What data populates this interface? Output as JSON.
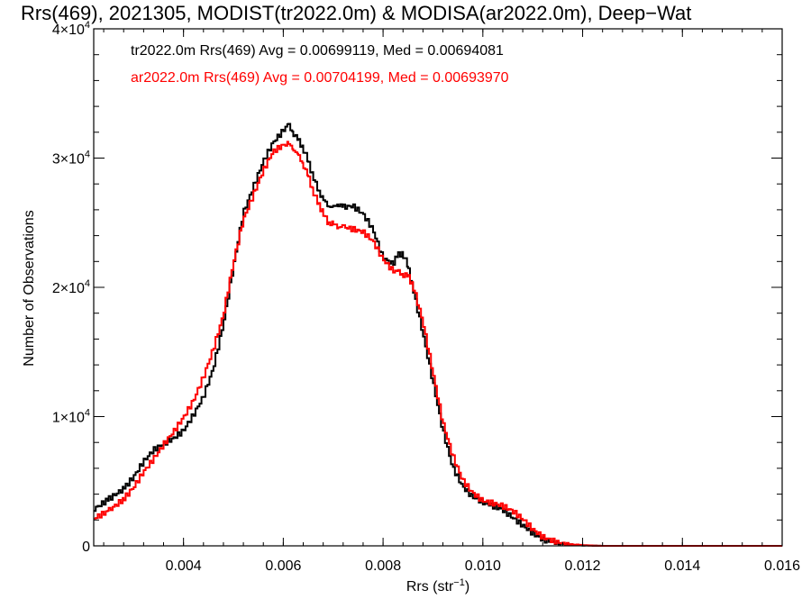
{
  "chart_data": {
    "type": "line",
    "title": "Rrs(469), 2021305, MODIST(tr2022.0m) & MODISA(ar2022.0m), Deep−Wat",
    "xlabel": "Rrs (str",
    "xlabel_sup": "−1",
    "xlabel_end": ")",
    "ylabel": "Number of Observations",
    "xlim": [
      0.0022,
      0.016
    ],
    "ylim": [
      0,
      40000
    ],
    "x_ticks": [
      {
        "value": 0.004,
        "label": "0.004"
      },
      {
        "value": 0.006,
        "label": "0.006"
      },
      {
        "value": 0.008,
        "label": "0.008"
      },
      {
        "value": 0.01,
        "label": "0.010"
      },
      {
        "value": 0.012,
        "label": "0.012"
      },
      {
        "value": 0.014,
        "label": "0.014"
      },
      {
        "value": 0.016,
        "label": "0.016"
      }
    ],
    "y_ticks": [
      {
        "value": 0,
        "mant": "0",
        "exp": ""
      },
      {
        "value": 10000,
        "mant": "1×10",
        "exp": "4"
      },
      {
        "value": 20000,
        "mant": "2×10",
        "exp": "4"
      },
      {
        "value": 30000,
        "mant": "3×10",
        "exp": "4"
      },
      {
        "value": 40000,
        "mant": "4×10",
        "exp": "4"
      }
    ],
    "grid": false,
    "series": [
      {
        "name": "tr2022.0m",
        "color": "#000000",
        "legend": "tr2022.0m Rrs(469) Avg = 0.00699119, Med = 0.00694081",
        "x": [
          0.0022,
          0.0025,
          0.0028,
          0.003,
          0.0032,
          0.0034,
          0.0036,
          0.0038,
          0.004,
          0.0042,
          0.0044,
          0.0046,
          0.0048,
          0.005,
          0.0052,
          0.0054,
          0.0056,
          0.0058,
          0.006,
          0.0061,
          0.0062,
          0.0063,
          0.0064,
          0.0065,
          0.0066,
          0.0067,
          0.0068,
          0.0069,
          0.007,
          0.0071,
          0.0072,
          0.0074,
          0.0076,
          0.0078,
          0.008,
          0.0082,
          0.0083,
          0.0084,
          0.0085,
          0.0086,
          0.0088,
          0.009,
          0.0092,
          0.0094,
          0.0096,
          0.0098,
          0.01,
          0.0102,
          0.0104,
          0.0106,
          0.0108,
          0.011,
          0.0112,
          0.0114,
          0.0116,
          0.0118,
          0.012,
          0.0122,
          0.0124,
          0.0126,
          0.0128,
          0.013,
          0.0132,
          0.0135,
          0.014,
          0.015,
          0.016
        ],
        "y": [
          2800,
          3600,
          4400,
          5300,
          6500,
          7400,
          7900,
          8300,
          8900,
          10100,
          11500,
          13700,
          17100,
          21500,
          25700,
          27700,
          29700,
          31200,
          32100,
          32600,
          32000,
          31400,
          30800,
          29800,
          28600,
          27600,
          26800,
          26400,
          26100,
          26500,
          26200,
          26300,
          25700,
          24500,
          22300,
          21800,
          22500,
          22600,
          21700,
          20000,
          16500,
          12800,
          9000,
          6100,
          4600,
          3800,
          3400,
          3100,
          2800,
          2200,
          1600,
          1000,
          500,
          300,
          150,
          80,
          40,
          20,
          0,
          0,
          0,
          0,
          0,
          0,
          0,
          0,
          0
        ]
      },
      {
        "name": "ar2022.0m",
        "color": "#ff0000",
        "legend": "ar2022.0m Rrs(469) Avg = 0.00704199, Med = 0.00693970",
        "x": [
          0.0022,
          0.0025,
          0.0028,
          0.003,
          0.0032,
          0.0034,
          0.0036,
          0.0038,
          0.004,
          0.0042,
          0.0044,
          0.0046,
          0.0048,
          0.005,
          0.0052,
          0.0054,
          0.0056,
          0.0058,
          0.006,
          0.0061,
          0.0062,
          0.0063,
          0.0064,
          0.0065,
          0.0066,
          0.0067,
          0.0068,
          0.0069,
          0.007,
          0.0071,
          0.0072,
          0.0074,
          0.0076,
          0.0078,
          0.008,
          0.0082,
          0.0083,
          0.0084,
          0.0085,
          0.0086,
          0.0088,
          0.009,
          0.0092,
          0.0094,
          0.0096,
          0.0098,
          0.01,
          0.0102,
          0.0104,
          0.0106,
          0.0108,
          0.011,
          0.0112,
          0.0114,
          0.0116,
          0.0118,
          0.012,
          0.0122,
          0.0124,
          0.0126,
          0.0128,
          0.013,
          0.0132,
          0.0135,
          0.014,
          0.015,
          0.016
        ],
        "y": [
          2100,
          2700,
          3600,
          4500,
          5700,
          6700,
          7800,
          8800,
          9900,
          11200,
          13000,
          15200,
          17800,
          21800,
          25200,
          27100,
          29000,
          30500,
          31000,
          31100,
          30800,
          30200,
          29600,
          28600,
          27500,
          26500,
          25800,
          25000,
          24900,
          24700,
          24700,
          24500,
          24300,
          23600,
          22200,
          21300,
          21200,
          21000,
          20900,
          20200,
          17400,
          13500,
          9600,
          7000,
          5100,
          4100,
          3500,
          3300,
          3100,
          2700,
          2100,
          1300,
          700,
          400,
          200,
          100,
          50,
          20,
          0,
          0,
          0,
          0,
          0,
          0,
          0,
          0,
          0
        ]
      }
    ]
  }
}
